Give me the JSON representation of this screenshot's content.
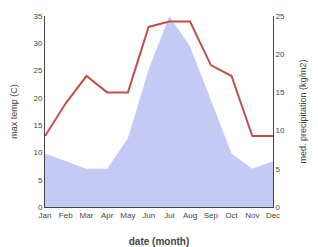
{
  "chart_data": {
    "type": "line",
    "xlabel": "date (month)",
    "ylabel": "max temp (C)",
    "y2label": "med. precipitation (kg/m2)",
    "categories": [
      "Jan",
      "Feb",
      "Mar",
      "Apr",
      "May",
      "Jun",
      "Jul",
      "Aug",
      "Sep",
      "Oct",
      "Nov",
      "Dec"
    ],
    "series": [
      {
        "type": "line",
        "color": "#c0504d",
        "values": [
          13,
          19,
          24,
          21,
          21,
          33,
          34,
          34,
          26,
          24,
          13,
          13
        ]
      },
      {
        "type": "area",
        "color": "#c5caf5",
        "axis": "y2",
        "values": [
          7,
          6,
          5,
          5,
          9,
          18,
          25,
          21,
          14,
          7,
          5,
          6
        ]
      }
    ],
    "ylim": [
      0,
      35
    ],
    "yticks": [
      0,
      5,
      10,
      15,
      20,
      25,
      30,
      35
    ],
    "y2lim": [
      0,
      25
    ],
    "y2ticks": [
      0,
      5,
      10,
      15,
      20,
      25
    ],
    "grid": false
  }
}
